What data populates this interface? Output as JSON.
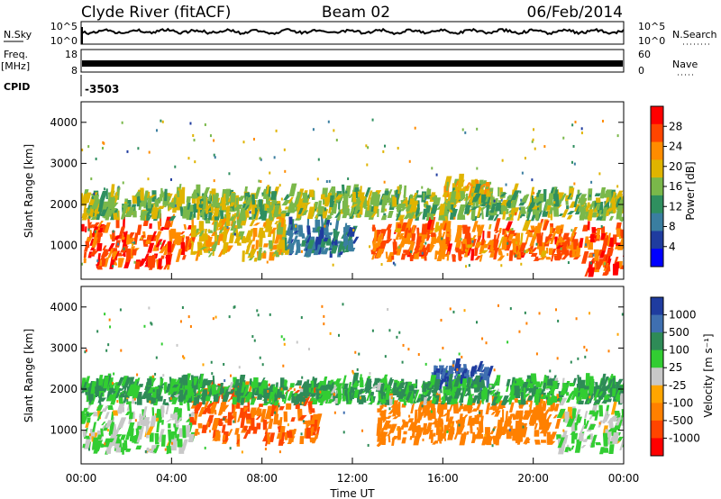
{
  "header": {
    "station": "Clyde River (fitACF)",
    "beam": "Beam 02",
    "date": "06/Feb/2014"
  },
  "param_panels": {
    "nsky": {
      "label": "N.Sky",
      "ticks": [
        "10^5",
        "10^0"
      ]
    },
    "nsearch": {
      "label": "N.Search",
      "ticks": [
        "10^5",
        "10^0"
      ]
    },
    "freq": {
      "label_line1": "Freq.",
      "label_line2": "[MHz]",
      "ticks": [
        "18",
        "8"
      ]
    },
    "nave": {
      "label": "Nave",
      "ticks": [
        "60",
        "0"
      ]
    },
    "cpid": {
      "label": "CPID",
      "value": "-3503"
    }
  },
  "colors": {
    "power": [
      "#0000ff",
      "#1f3c9f",
      "#3a7ea0",
      "#2f8f5f",
      "#7ab84a",
      "#e0b400",
      "#ff8c00",
      "#ff4500",
      "#ff0000"
    ],
    "velocity": [
      "#ff0000",
      "#ff4500",
      "#ff8000",
      "#ffa500",
      "#c8c8c8",
      "#32cd32",
      "#2e8b57",
      "#3f6fb0",
      "#1f3c9f"
    ]
  },
  "chart_data": [
    {
      "type": "heatmap",
      "panel": "power",
      "ylabel": "Slant Range [km]",
      "ylim": [
        180,
        4500
      ],
      "yticks": [
        "4000",
        "3000",
        "2000",
        "1000"
      ],
      "xlim": [
        "00:00",
        "24:00"
      ],
      "colorbar": {
        "label": "Power [dB]",
        "ticks": [
          "28",
          "24",
          "20",
          "16",
          "12",
          "8",
          "4"
        ],
        "range": [
          0,
          32
        ]
      },
      "regions": [
        {
          "t0": 0.0,
          "t1": 4.8,
          "r0": 400,
          "r1": 1500,
          "level": 28
        },
        {
          "t0": 4.8,
          "t1": 9.0,
          "r0": 600,
          "r1": 1650,
          "level": 20
        },
        {
          "t0": 9.0,
          "t1": 12.0,
          "r0": 700,
          "r1": 1400,
          "level": 8
        },
        {
          "t0": 12.8,
          "t1": 22.0,
          "r0": 600,
          "r1": 1400,
          "level": 26
        },
        {
          "t0": 22.0,
          "t1": 24.0,
          "r0": 200,
          "r1": 1400,
          "level": 28
        },
        {
          "t0": 16.0,
          "t1": 18.0,
          "r0": 1950,
          "r1": 2450,
          "level": 20
        },
        {
          "t0": 0.0,
          "t1": 24.0,
          "r0": 1600,
          "r1": 2200,
          "level": 16
        }
      ]
    },
    {
      "type": "heatmap",
      "panel": "velocity",
      "ylabel": "Slant Range [km]",
      "ylim": [
        180,
        4500
      ],
      "yticks": [
        "4000",
        "3000",
        "2000",
        "1000"
      ],
      "xlabel": "Time UT",
      "xticks": [
        "00:00",
        "04:00",
        "08:00",
        "12:00",
        "16:00",
        "20:00",
        "00:00"
      ],
      "colorbar": {
        "label": "Velocity [m s⁻¹]",
        "ticks": [
          "1000",
          "500",
          "100",
          "25",
          "-25",
          "-100",
          "-500",
          "-1000"
        ]
      },
      "regions": [
        {
          "t0": 0.0,
          "t1": 4.8,
          "r0": 400,
          "r1": 1500,
          "value": 25
        },
        {
          "t0": 4.8,
          "t1": 10.5,
          "r0": 600,
          "r1": 2000,
          "value": -500
        },
        {
          "t0": 13.0,
          "t1": 21.0,
          "r0": 600,
          "r1": 1700,
          "value": -300
        },
        {
          "t0": 21.0,
          "t1": 24.0,
          "r0": 400,
          "r1": 1400,
          "value": 25
        },
        {
          "t0": 15.5,
          "t1": 18.0,
          "r0": 1950,
          "r1": 2450,
          "value": 1000
        },
        {
          "t0": 0.0,
          "t1": 24.0,
          "r0": 1600,
          "r1": 2100,
          "value": 100
        }
      ]
    }
  ]
}
